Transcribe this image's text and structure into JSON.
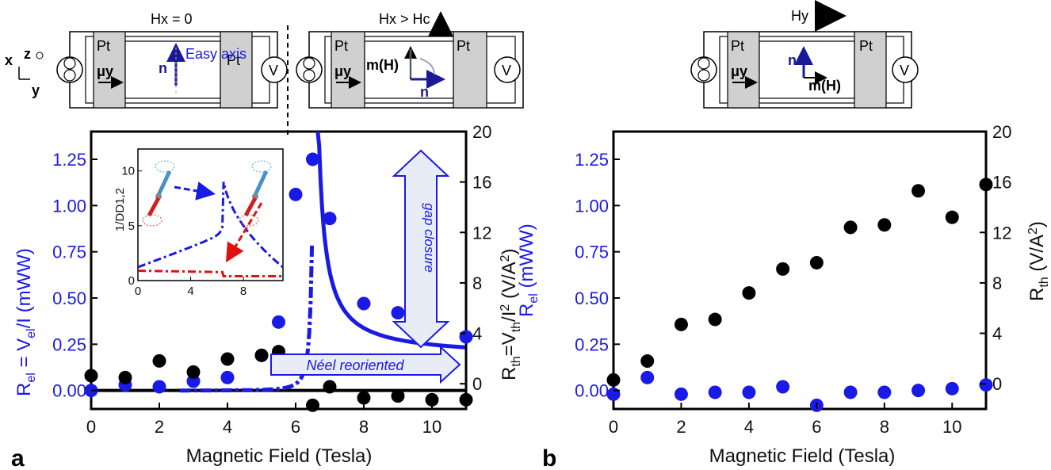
{
  "chart_data": [
    {
      "panel": "a",
      "type": "scatter",
      "xlabel": "Magnetic Field (Tesla)",
      "ylabel_left": "R_el = V_el / I (mWW)",
      "ylabel_right": "R_th = V_th / I^2 (V/A^2)",
      "xlim": [
        0,
        11
      ],
      "ylim_left": [
        -0.1,
        1.4
      ],
      "ylim_right": [
        -2,
        20
      ],
      "xticks": [
        "0",
        "2",
        "4",
        "6",
        "8",
        "10"
      ],
      "yticks_left": [
        "0.00",
        "0.25",
        "0.50",
        "0.75",
        "1.00",
        "1.25"
      ],
      "yticks_right": [
        "0",
        "4",
        "8",
        "12",
        "16",
        "20"
      ],
      "series": [
        {
          "axis": "left",
          "color": "#1a1ae6",
          "x": [
            0,
            1,
            2,
            3,
            4,
            5,
            5.5,
            6,
            6.5,
            7,
            8,
            9,
            10,
            11
          ],
          "y": [
            0.0,
            0.03,
            0.02,
            0.05,
            0.07,
            0.19,
            0.37,
            1.06,
            1.25,
            0.93,
            0.47,
            0.42,
            0.34,
            0.29
          ]
        },
        {
          "axis": "left",
          "color": "#000000",
          "x": [
            0,
            1,
            2,
            3,
            4,
            5,
            5.5,
            6.5,
            7,
            8,
            9,
            10,
            11
          ],
          "y": [
            0.08,
            0.07,
            0.16,
            0.1,
            0.17,
            0.19,
            0.21,
            -0.08,
            0.02,
            -0.04,
            -0.03,
            -0.05,
            -0.05
          ]
        }
      ],
      "fit_curve": {
        "color": "#1a1ae6",
        "center": 6.6
      },
      "baseline_y": 0.0,
      "annotations": [
        "gap closure",
        "Néel reoriented"
      ],
      "inset": {
        "ylabel": "1/DD1,2",
        "xticks": [
          "0",
          "4",
          "8"
        ],
        "yticks": [
          "0",
          "5",
          "10"
        ],
        "xlim": [
          0,
          11
        ],
        "ylim": [
          0,
          12
        ]
      }
    },
    {
      "panel": "b",
      "type": "scatter",
      "xlabel": "Magnetic Field (Tesla)",
      "ylabel_left": "R_el (mWW)",
      "ylabel_right": "R_th (V/A^2)",
      "xlim": [
        0,
        11
      ],
      "ylim_left": [
        -0.1,
        1.4
      ],
      "ylim_right": [
        -2,
        20
      ],
      "xticks": [
        "0",
        "2",
        "4",
        "6",
        "8",
        "10"
      ],
      "yticks_left": [
        "0.00",
        "0.25",
        "0.50",
        "0.75",
        "1.00",
        "1.25"
      ],
      "yticks_right": [
        "0",
        "4",
        "8",
        "12",
        "16",
        "20"
      ],
      "series": [
        {
          "axis": "left",
          "color": "#1a1ae6",
          "x": [
            0,
            1,
            2,
            3,
            4,
            5,
            6,
            7,
            8,
            9,
            10,
            11
          ],
          "y": [
            -0.02,
            0.07,
            -0.02,
            -0.01,
            -0.01,
            0.02,
            -0.08,
            -0.01,
            -0.01,
            0.0,
            0.01,
            0.03
          ]
        },
        {
          "axis": "right",
          "color": "#000000",
          "x": [
            0,
            1,
            2,
            3,
            4,
            5,
            6,
            7,
            8,
            9,
            10,
            11
          ],
          "y": [
            0.3,
            1.8,
            4.7,
            5.1,
            7.2,
            9.1,
            9.6,
            12.4,
            12.6,
            15.3,
            13.2,
            15.8
          ]
        }
      ]
    }
  ],
  "schematics": {
    "a_left": {
      "field": "Hx = 0",
      "pt_left": "Pt",
      "pt_right": "Pt",
      "mu": "μy",
      "n": "n",
      "axis": "Easy axis",
      "v": "V",
      "coords": {
        "x": "x",
        "z": "z",
        "y": "y"
      }
    },
    "a_right": {
      "field": "Hx > Hc",
      "pt_left": "Pt",
      "pt_right": "Pt",
      "mu": "μy",
      "m": "m(H)",
      "n": "n",
      "v": "V"
    },
    "b": {
      "field": "Hy",
      "pt_left": "Pt",
      "pt_right": "Pt",
      "mu": "μy",
      "n": "n",
      "m": "m(H)",
      "v": "V"
    }
  },
  "panel_letters": [
    "a",
    "b"
  ]
}
